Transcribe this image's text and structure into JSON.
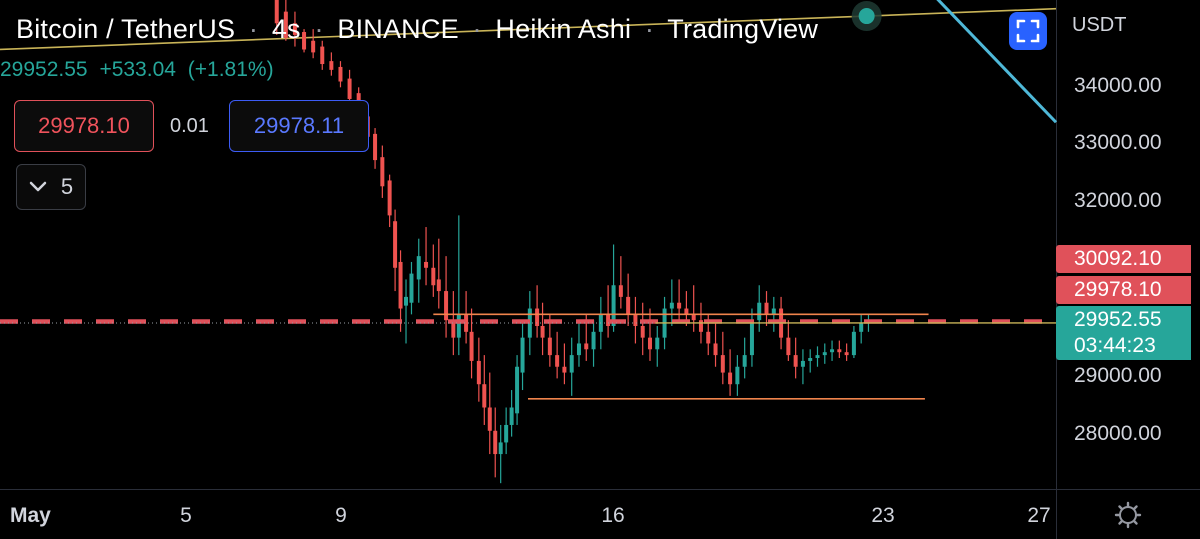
{
  "header": {
    "symbol": "Bitcoin / TetherUS",
    "interval": "4s",
    "exchange": "BINANCE",
    "chart_style": "Heikin Ashi",
    "source": "TradingView",
    "separator": "·"
  },
  "ohlc_legend": {
    "price": "29952.55",
    "change": "+533.04",
    "change_pct": "(+1.81%)"
  },
  "trade_panel": {
    "sell_price": "29978.10",
    "spread": "0.01",
    "buy_price": "29978.11",
    "collapsed_count": "5"
  },
  "price_axis": {
    "currency": "USDT",
    "ticks": [
      "34000.00",
      "33000.00",
      "32000.00",
      "29000.00",
      "28000.00"
    ]
  },
  "price_badges": {
    "upper_level": "30092.10",
    "order_level": "29978.10",
    "last_price": "29952.55",
    "countdown": "03:44:23"
  },
  "time_axis": {
    "labels": [
      "May",
      "5",
      "9",
      "16",
      "23",
      "27"
    ]
  },
  "icons": {
    "collapse": "chevron-down-icon",
    "fullscreen": "fullscreen-icon",
    "settings": "gear-icon"
  },
  "colors": {
    "up": "#26a69a",
    "down": "#ef5350",
    "background": "#000000",
    "trendline_cyan": "#4fb8d8",
    "trendline_yellow": "#c9b458",
    "range_lines": "#f0844c",
    "order_line": "#e0515a",
    "buy_accent": "#3d5cf5"
  },
  "chart_data": {
    "type": "candlestick",
    "style": "heikin-ashi",
    "time_domain": [
      -1,
      28
    ],
    "price_domain": [
      27100,
      35500
    ],
    "y_ticks": [
      34000,
      33000,
      32000,
      29000,
      28000
    ],
    "x_ticks": [
      5,
      9,
      16,
      23,
      27
    ],
    "candles": [
      [
        6.6,
        35600,
        35600,
        34900,
        35100
      ],
      [
        6.85,
        35300,
        35500,
        34800,
        34850
      ],
      [
        7.1,
        35100,
        35300,
        34700,
        34900
      ],
      [
        7.35,
        34950,
        35000,
        34600,
        34650
      ],
      [
        7.6,
        34800,
        35000,
        34500,
        34600
      ],
      [
        7.85,
        34700,
        34800,
        34300,
        34400
      ],
      [
        8.1,
        34450,
        34600,
        34200,
        34300
      ],
      [
        8.35,
        34350,
        34450,
        34000,
        34100
      ],
      [
        8.6,
        34150,
        34300,
        33700,
        33800
      ],
      [
        8.85,
        33900,
        34000,
        33400,
        33500
      ],
      [
        9.1,
        33500,
        33700,
        33000,
        33150
      ],
      [
        9.3,
        33200,
        33300,
        32600,
        32750
      ],
      [
        9.5,
        32800,
        33000,
        32100,
        32300
      ],
      [
        9.7,
        32400,
        32500,
        31600,
        31800
      ],
      [
        9.85,
        31700,
        31900,
        30500,
        30900
      ],
      [
        10.0,
        31000,
        31200,
        29800,
        30200
      ],
      [
        10.15,
        30250,
        30700,
        29600,
        30400
      ],
      [
        10.3,
        30300,
        31000,
        30100,
        30800
      ],
      [
        10.5,
        30700,
        31400,
        30300,
        31100
      ],
      [
        10.7,
        31000,
        31600,
        30600,
        30900
      ],
      [
        10.9,
        30900,
        31300,
        30400,
        30600
      ],
      [
        11.05,
        30700,
        31400,
        30200,
        30500
      ],
      [
        11.25,
        30500,
        31100,
        29700,
        30000
      ],
      [
        11.45,
        30000,
        30500,
        29400,
        29700
      ],
      [
        11.6,
        29700,
        31800,
        29400,
        30100
      ],
      [
        11.8,
        30100,
        30500,
        29600,
        29800
      ],
      [
        11.95,
        29800,
        30200,
        29000,
        29300
      ],
      [
        12.15,
        29300,
        29700,
        28600,
        28900
      ],
      [
        12.3,
        28900,
        29400,
        28200,
        28500
      ],
      [
        12.45,
        28500,
        29100,
        27700,
        28100
      ],
      [
        12.6,
        28100,
        28500,
        27300,
        27700
      ],
      [
        12.75,
        27700,
        28200,
        27200,
        27900
      ],
      [
        12.9,
        27900,
        28500,
        27700,
        28200
      ],
      [
        13.05,
        28200,
        28800,
        28000,
        28500
      ],
      [
        13.2,
        28400,
        29400,
        28200,
        29200
      ],
      [
        13.35,
        29100,
        30000,
        28800,
        29700
      ],
      [
        13.55,
        29700,
        30500,
        29400,
        30200
      ],
      [
        13.75,
        30200,
        30600,
        29700,
        29900
      ],
      [
        13.9,
        29900,
        30300,
        29400,
        29700
      ],
      [
        14.1,
        29700,
        30100,
        29200,
        29400
      ],
      [
        14.3,
        29400,
        29800,
        29000,
        29200
      ],
      [
        14.5,
        29200,
        29600,
        28900,
        29100
      ],
      [
        14.7,
        29100,
        29700,
        28700,
        29400
      ],
      [
        14.9,
        29400,
        30000,
        29200,
        29600
      ],
      [
        15.1,
        29600,
        30100,
        29300,
        29500
      ],
      [
        15.3,
        29500,
        30000,
        29200,
        29800
      ],
      [
        15.5,
        29800,
        30400,
        29500,
        30100
      ],
      [
        15.7,
        30100,
        30600,
        29700,
        29900
      ],
      [
        15.85,
        29900,
        31300,
        29800,
        30600
      ],
      [
        16.05,
        30600,
        31100,
        30200,
        30400
      ],
      [
        16.25,
        30400,
        30800,
        29900,
        30100
      ],
      [
        16.45,
        30100,
        30400,
        29600,
        29900
      ],
      [
        16.65,
        29900,
        30300,
        29400,
        29700
      ],
      [
        16.85,
        29700,
        30200,
        29300,
        29500
      ],
      [
        17.05,
        29500,
        29900,
        29200,
        29700
      ],
      [
        17.25,
        29700,
        30400,
        29500,
        30200
      ],
      [
        17.45,
        30200,
        30700,
        29900,
        30300
      ],
      [
        17.65,
        30300,
        30700,
        30000,
        30200
      ],
      [
        17.85,
        30200,
        30500,
        29900,
        30100
      ],
      [
        18.05,
        30100,
        30600,
        29800,
        30000
      ],
      [
        18.25,
        30000,
        30300,
        29600,
        29800
      ],
      [
        18.45,
        29800,
        30100,
        29400,
        29600
      ],
      [
        18.65,
        29600,
        30000,
        29200,
        29400
      ],
      [
        18.85,
        29400,
        29800,
        28900,
        29100
      ],
      [
        19.05,
        29100,
        29500,
        28700,
        28900
      ],
      [
        19.25,
        28900,
        29400,
        28700,
        29200
      ],
      [
        19.45,
        29200,
        29700,
        29000,
        29400
      ],
      [
        19.65,
        29400,
        30200,
        29200,
        30000
      ],
      [
        19.85,
        30000,
        30600,
        29800,
        30300
      ],
      [
        20.05,
        30300,
        30500,
        29900,
        30100
      ],
      [
        20.25,
        30100,
        30400,
        29800,
        30200
      ],
      [
        20.45,
        30200,
        30400,
        29500,
        29700
      ],
      [
        20.65,
        29700,
        30000,
        29300,
        29400
      ],
      [
        20.85,
        29400,
        29700,
        29000,
        29200
      ],
      [
        21.05,
        29200,
        29500,
        28900,
        29300
      ],
      [
        21.25,
        29300,
        29500,
        29100,
        29350
      ],
      [
        21.45,
        29350,
        29550,
        29200,
        29400
      ],
      [
        21.65,
        29400,
        29600,
        29250,
        29450
      ],
      [
        21.85,
        29450,
        29650,
        29300,
        29500
      ],
      [
        22.05,
        29500,
        29650,
        29350,
        29450
      ],
      [
        22.25,
        29450,
        29600,
        29300,
        29400
      ],
      [
        22.45,
        29400,
        29900,
        29350,
        29800
      ],
      [
        22.65,
        29800,
        30100,
        29600,
        29950
      ],
      [
        22.85,
        29950,
        30100,
        29800,
        29980
      ]
    ],
    "drawings": {
      "yellow_trendline": {
        "from": [
          -1,
          34650
        ],
        "to": [
          28,
          35350
        ]
      },
      "cyan_trendline": {
        "from": [
          24.0,
          36000
        ],
        "to": [
          28,
          33400
        ]
      },
      "resistance_line": {
        "from": [
          10.9,
          30100
        ],
        "to": [
          24.5,
          30100
        ]
      },
      "support_line": {
        "from": [
          13.5,
          28650
        ],
        "to": [
          24.4,
          28650
        ]
      },
      "order_line_price": 29978.1,
      "upper_level_price": 30092.1,
      "last_price": 29952.55
    }
  }
}
